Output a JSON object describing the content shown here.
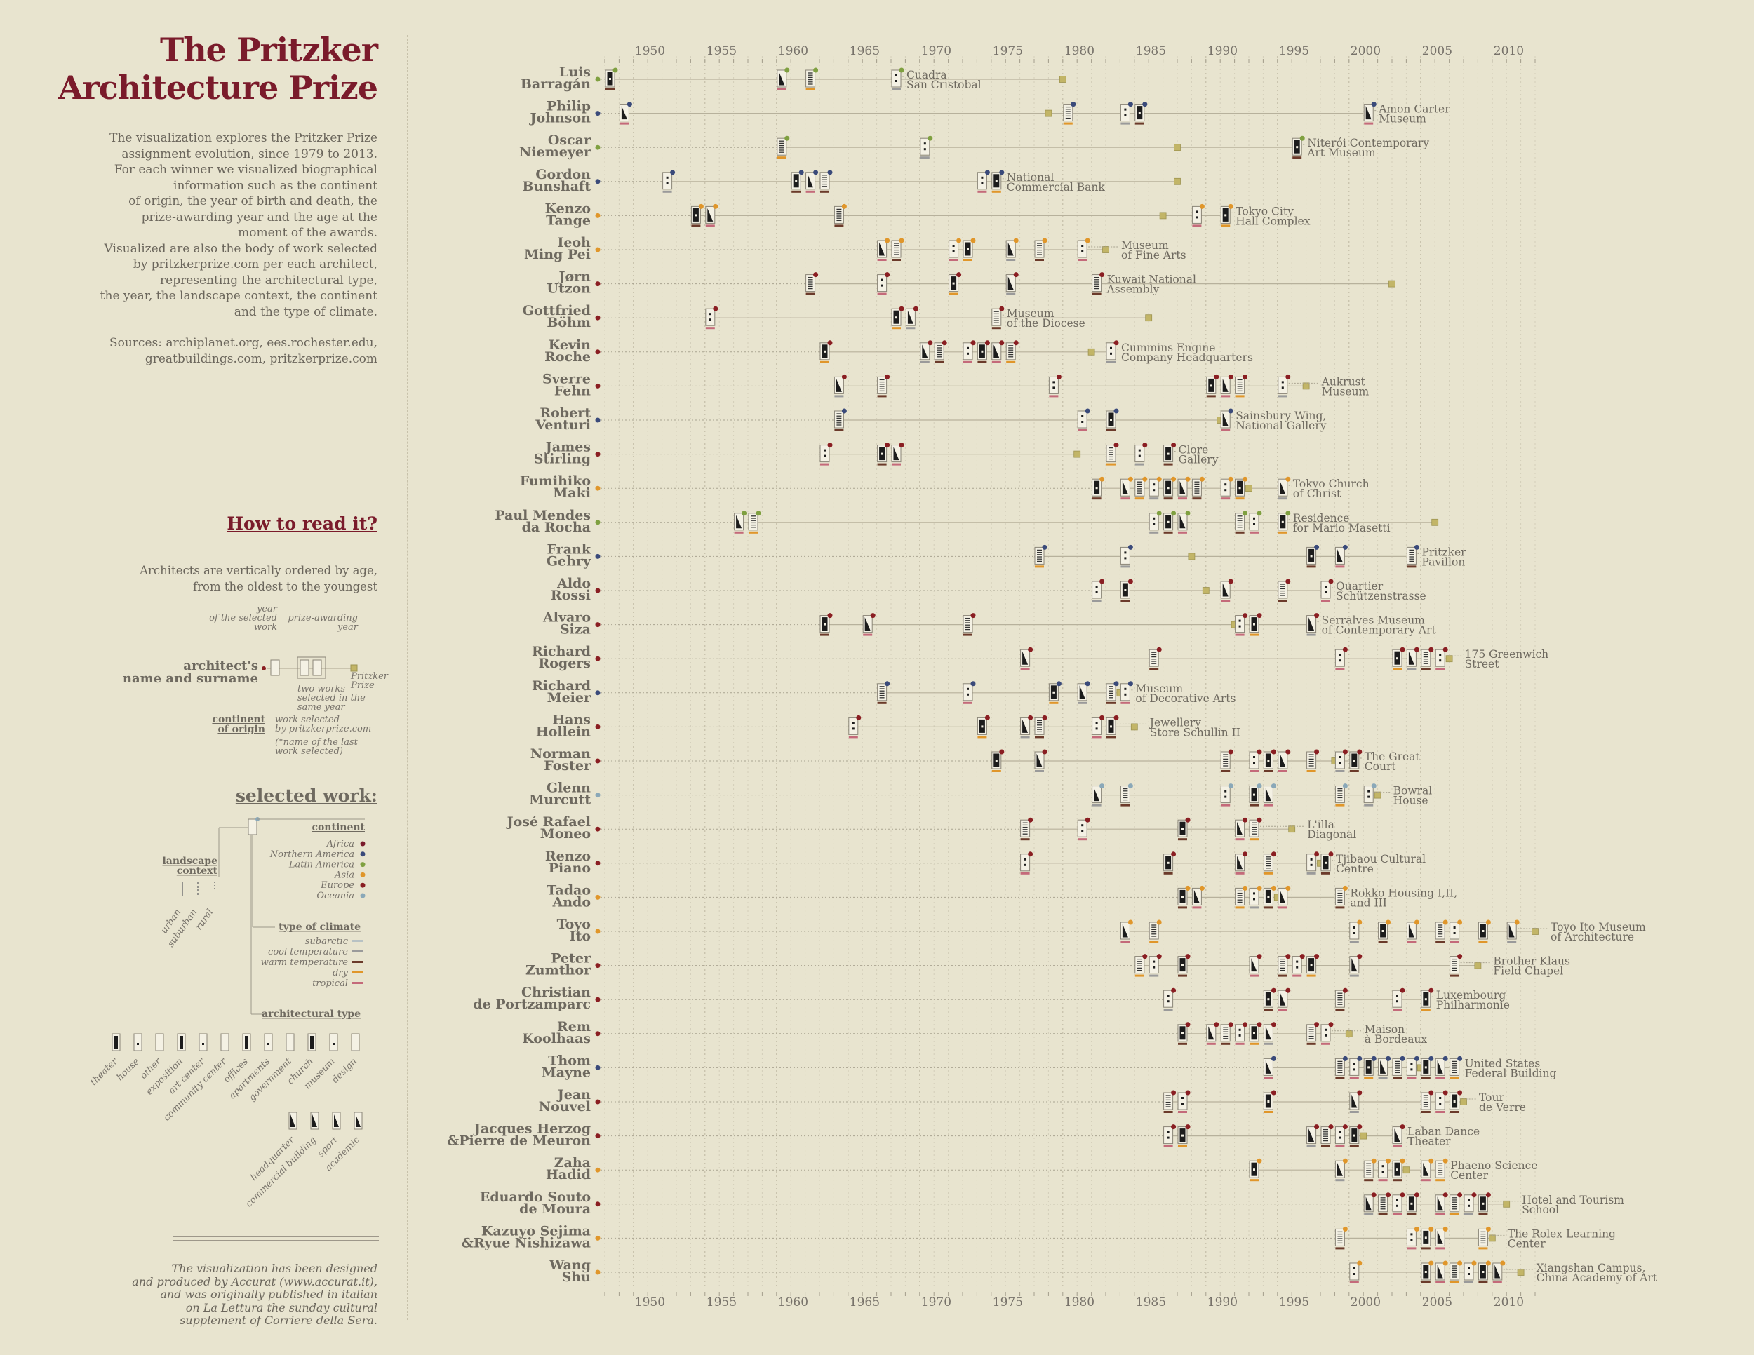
{
  "title": {
    "line1": "The Pritzker",
    "line2": "Architecture Prize"
  },
  "intro": [
    "The visualization explores the Pritzker Prize",
    "assignment evolution, since 1979 to 2013.",
    "For each winner we visualized biographical",
    "information such as the continent",
    "of origin, the year of birth and death, the",
    "prize-awarding year and the age at the",
    "moment of the awards.",
    "Visualized are also the body of work selected",
    "by pritzkerprize.com per each architect,",
    "representing the architectural type,",
    "the year, the landscape context, the continent",
    "and the type of climate."
  ],
  "sources": [
    "Sources: archiplanet.org, ees.rochester.edu,",
    "greatbuildings.com, pritzkerprize.com"
  ],
  "how_to_read": {
    "heading": "How to read it?",
    "text": [
      "Architects are vertically ordered by age,",
      "from the oldest to the youngest"
    ],
    "labels": {
      "year_selected": [
        "year",
        "of the selected",
        "work"
      ],
      "prize_awarding": [
        "prize-awarding",
        "year"
      ],
      "name": [
        "architect's",
        "name and surname"
      ],
      "continent": [
        "continent",
        "of origin"
      ],
      "two_works": [
        "two works",
        "selected in the",
        "same year"
      ],
      "work_selected": [
        "work selected",
        "by pritzkerprize.com"
      ],
      "last_work": [
        "(*name of the last",
        "work selected)"
      ],
      "prize": [
        "Pritzker",
        "Prize"
      ]
    }
  },
  "selected_work": {
    "heading": "selected work:",
    "continent_title": "continent",
    "continents": [
      {
        "label": "Africa",
        "color": "#7a1b2b"
      },
      {
        "label": "Northern America",
        "color": "#3a4a7a"
      },
      {
        "label": "Latin America",
        "color": "#7fa040"
      },
      {
        "label": "Asia",
        "color": "#e0962a"
      },
      {
        "label": "Europe",
        "color": "#8a1e22"
      },
      {
        "label": "Oceania",
        "color": "#8aa8b8"
      }
    ],
    "landscape_title": [
      "landscape",
      "context"
    ],
    "landscape": [
      "urban",
      "suburban",
      "rural"
    ],
    "climate_title": "type of climate",
    "climates": [
      {
        "label": "subarctic",
        "color": "#b8c2c4"
      },
      {
        "label": "cool temperature",
        "color": "#9a9a9a"
      },
      {
        "label": "warm temperature",
        "color": "#6b3a2a"
      },
      {
        "label": "dry",
        "color": "#e0962a"
      },
      {
        "label": "tropical",
        "color": "#c46a7a"
      }
    ],
    "type_title": "architectural type",
    "types_row1": [
      "theater",
      "house",
      "other",
      "exposition",
      "art center",
      "community center",
      "offices",
      "apartments",
      "government",
      "church",
      "museum",
      "design"
    ],
    "types_row2": [
      "headquarter",
      "commercial building",
      "sport",
      "academic"
    ]
  },
  "credits": [
    "The visualization has been designed",
    "and produced by Accurat (www.accurat.it),",
    "and was originally published in italian",
    "on La Lettura the sunday cultural",
    "supplement of Corriere della Sera."
  ],
  "chart_data": {
    "type": "timeline",
    "x_axis": {
      "min": 1948,
      "max": 2013,
      "ticks": [
        1950,
        1955,
        1960,
        1965,
        1970,
        1975,
        1980,
        1985,
        1990,
        1995,
        2000,
        2005,
        2010
      ]
    },
    "colors": {
      "Europe": "#8a1e22",
      "Northern America": "#3a4a7a",
      "Latin America": "#7fa040",
      "Asia": "#e0962a",
      "Oceania": "#8aa8b8"
    },
    "architects": [
      {
        "name": [
          "Luis",
          "Barragán"
        ],
        "continent": "Latin America",
        "prize": 1980,
        "start": 1948,
        "works": [
          1948,
          1960,
          1962,
          1968
        ],
        "last_work": [
          "Cuadra",
          "San Cristobal"
        ]
      },
      {
        "name": [
          "Philip",
          "Johnson"
        ],
        "continent": "Northern America",
        "prize": 1979,
        "start": 1949,
        "works": [
          1949,
          1980,
          1984,
          1985,
          2001
        ],
        "last_work": [
          "Amon Carter",
          "Museum"
        ]
      },
      {
        "name": [
          "Oscar",
          "Niemeyer"
        ],
        "continent": "Latin America",
        "prize": 1988,
        "start": 1960,
        "works": [
          1960,
          1970,
          1996
        ],
        "last_work": [
          "Niterói Contemporary",
          "Art Museum"
        ]
      },
      {
        "name": [
          "Gordon",
          "Bunshaft"
        ],
        "continent": "Northern America",
        "prize": 1988,
        "start": 1952,
        "works": [
          1952,
          1961,
          1962,
          1963,
          1974,
          1975
        ],
        "last_work": [
          "National",
          "Commercial Bank"
        ]
      },
      {
        "name": [
          "Kenzo",
          "Tange"
        ],
        "continent": "Asia",
        "prize": 1987,
        "start": 1954,
        "works": [
          1954,
          1955,
          1964,
          1989,
          1991
        ],
        "last_work": [
          "Tokyo City",
          "Hall Complex"
        ]
      },
      {
        "name": [
          "Ieoh",
          "Ming Pei"
        ],
        "continent": "Asia",
        "prize": 1983,
        "start": 1967,
        "works": [
          1967,
          1968,
          1972,
          1973,
          1976,
          1978,
          1981
        ],
        "last_work": [
          "Museum",
          "of Fine Arts"
        ]
      },
      {
        "name": [
          "Jørn",
          "Utzon"
        ],
        "continent": "Europe",
        "prize": 2003,
        "start": 1962,
        "works": [
          1962,
          1967,
          1972,
          1976,
          1982
        ],
        "last_work": [
          "Kuwait National",
          "Assembly"
        ]
      },
      {
        "name": [
          "Gottfried",
          "Böhm"
        ],
        "continent": "Europe",
        "prize": 1986,
        "start": 1955,
        "works": [
          1955,
          1968,
          1969,
          1975
        ],
        "last_work": [
          "Museum",
          "of the Diocese"
        ]
      },
      {
        "name": [
          "Kevin",
          "Roche"
        ],
        "continent": "Europe",
        "prize": 1982,
        "start": 1963,
        "works": [
          1963,
          1970,
          1971,
          1973,
          1974,
          1975,
          1976,
          1983
        ],
        "last_work": [
          "Cummins Engine",
          "Company Headquarters"
        ]
      },
      {
        "name": [
          "Sverre",
          "Fehn"
        ],
        "continent": "Europe",
        "prize": 1997,
        "start": 1964,
        "works": [
          1964,
          1967,
          1979,
          1990,
          1991,
          1992,
          1995
        ],
        "last_work": [
          "Aukrust",
          "Museum"
        ]
      },
      {
        "name": [
          "Robert",
          "Venturi"
        ],
        "continent": "Northern America",
        "prize": 1991,
        "start": 1964,
        "works": [
          1964,
          1981,
          1983,
          1991
        ],
        "last_work": [
          "Sainsbury Wing,",
          "National Gallery"
        ]
      },
      {
        "name": [
          "James",
          "Stirling"
        ],
        "continent": "Europe",
        "prize": 1981,
        "start": 1963,
        "works": [
          1963,
          1967,
          1968,
          1983,
          1985,
          1987
        ],
        "last_work": [
          "Clore",
          "Gallery"
        ]
      },
      {
        "name": [
          "Fumihiko",
          "Maki"
        ],
        "continent": "Asia",
        "prize": 1993,
        "start": 1982,
        "works": [
          1982,
          1984,
          1985,
          1986,
          1987,
          1988,
          1989,
          1991,
          1992,
          1995
        ],
        "last_work": [
          "Tokyo Church",
          "of Christ"
        ]
      },
      {
        "name": [
          "Paul Mendes",
          "da Rocha"
        ],
        "continent": "Latin America",
        "prize": 2006,
        "start": 1957,
        "works": [
          1957,
          1958,
          1986,
          1987,
          1988,
          1992,
          1993,
          1995
        ],
        "last_work": [
          "Residence",
          "for Mario Masetti"
        ]
      },
      {
        "name": [
          "Frank",
          "Gehry"
        ],
        "continent": "Northern America",
        "prize": 1989,
        "start": 1978,
        "works": [
          1978,
          1984,
          1997,
          1999,
          2004
        ],
        "last_work": [
          "Pritzker",
          "Pavillon"
        ]
      },
      {
        "name": [
          "Aldo",
          "Rossi"
        ],
        "continent": "Europe",
        "prize": 1990,
        "start": 1982,
        "works": [
          1982,
          1984,
          1991,
          1995,
          1998
        ],
        "last_work": [
          "Quartier",
          "Schützenstrasse"
        ]
      },
      {
        "name": [
          "Alvaro",
          "Siza"
        ],
        "continent": "Europe",
        "prize": 1992,
        "start": 1963,
        "works": [
          1963,
          1966,
          1973,
          1992,
          1993,
          1997
        ],
        "last_work": [
          "Serralves Museum",
          "of Contemporary Art"
        ]
      },
      {
        "name": [
          "Richard",
          "Rogers"
        ],
        "continent": "Europe",
        "prize": 2007,
        "start": 1977,
        "works": [
          1977,
          1986,
          1999,
          2003,
          2004,
          2005,
          2006
        ],
        "last_work": [
          "175 Greenwich",
          "Street"
        ]
      },
      {
        "name": [
          "Richard",
          "Meier"
        ],
        "continent": "Northern America",
        "prize": 1984,
        "start": 1967,
        "works": [
          1967,
          1973,
          1979,
          1981,
          1983,
          1984
        ],
        "last_work": [
          "Museum",
          "of Decorative Arts"
        ]
      },
      {
        "name": [
          "Hans",
          "Hollein"
        ],
        "continent": "Europe",
        "prize": 1985,
        "start": 1965,
        "works": [
          1965,
          1974,
          1977,
          1978,
          1982,
          1983
        ],
        "last_work": [
          "Jewellery",
          "Store Schullin II"
        ]
      },
      {
        "name": [
          "Norman",
          "Foster"
        ],
        "continent": "Europe",
        "prize": 1999,
        "start": 1975,
        "works": [
          1975,
          1978,
          1991,
          1993,
          1994,
          1995,
          1997,
          1999,
          2000
        ],
        "last_work": [
          "The Great",
          "Court"
        ]
      },
      {
        "name": [
          "Glenn",
          "Murcutt"
        ],
        "continent": "Oceania",
        "prize": 2002,
        "start": 1982,
        "works": [
          1982,
          1984,
          1991,
          1993,
          1994,
          1999,
          2001
        ],
        "last_work": [
          "Bowral",
          "House"
        ]
      },
      {
        "name": [
          "José Rafael",
          "Moneo"
        ],
        "continent": "Europe",
        "prize": 1996,
        "start": 1977,
        "works": [
          1977,
          1981,
          1988,
          1992,
          1993
        ],
        "last_work": [
          "L'illa",
          "Diagonal"
        ]
      },
      {
        "name": [
          "Renzo",
          "Piano"
        ],
        "continent": "Europe",
        "prize": 1998,
        "start": 1977,
        "works": [
          1977,
          1987,
          1992,
          1994,
          1997,
          1998
        ],
        "last_work": [
          "Tjibaou Cultural",
          "Centre"
        ]
      },
      {
        "name": [
          "Tadao",
          "Ando"
        ],
        "continent": "Asia",
        "prize": 1995,
        "start": 1988,
        "works": [
          1988,
          1989,
          1992,
          1993,
          1994,
          1995,
          1999
        ],
        "last_work": [
          "Rokko Housing I,II,",
          "and III"
        ]
      },
      {
        "name": [
          "Toyo",
          "Ito"
        ],
        "continent": "Asia",
        "prize": 2013,
        "start": 1984,
        "works": [
          1984,
          1986,
          2000,
          2002,
          2004,
          2006,
          2007,
          2009,
          2011
        ],
        "last_work": [
          "Toyo Ito Museum",
          "of Architecture"
        ]
      },
      {
        "name": [
          "Peter",
          "Zumthor"
        ],
        "continent": "Europe",
        "prize": 2009,
        "start": 1985,
        "works": [
          1985,
          1986,
          1988,
          1993,
          1995,
          1996,
          1997,
          2000,
          2007
        ],
        "last_work": [
          "Brother Klaus",
          "Field Chapel"
        ]
      },
      {
        "name": [
          "Christian",
          "de Portzamparc"
        ],
        "continent": "Europe",
        "prize": null,
        "start": 1987,
        "works": [
          1987,
          1994,
          1995,
          1999,
          2003,
          2005
        ],
        "last_work": [
          "Luxembourg",
          "Philharmonie"
        ]
      },
      {
        "name": [
          "Rem",
          "Koolhaas"
        ],
        "continent": "Europe",
        "prize": 2000,
        "start": 1988,
        "works": [
          1988,
          1990,
          1991,
          1992,
          1993,
          1994,
          1997,
          1998
        ],
        "last_work": [
          "Maison",
          "à Bordeaux"
        ]
      },
      {
        "name": [
          "Thom",
          "Mayne"
        ],
        "continent": "Northern America",
        "prize": 2005,
        "start": 1994,
        "works": [
          1994,
          1999,
          2000,
          2001,
          2002,
          2003,
          2004,
          2005,
          2006,
          2007
        ],
        "last_work": [
          "United States",
          "Federal Building"
        ]
      },
      {
        "name": [
          "Jean",
          "Nouvel"
        ],
        "continent": "Europe",
        "prize": 2008,
        "start": 1987,
        "works": [
          1987,
          1988,
          1994,
          2000,
          2005,
          2006,
          2007
        ],
        "last_work": [
          "Tour",
          "de Verre"
        ]
      },
      {
        "name": [
          "Jacques Herzog",
          "&Pierre de Meuron"
        ],
        "continent": "Europe",
        "prize": 2001,
        "start": 1987,
        "works": [
          1987,
          1988,
          1997,
          1998,
          1999,
          2000,
          2003
        ],
        "last_work": [
          "Laban Dance",
          "Theater"
        ]
      },
      {
        "name": [
          "Zaha",
          "Hadid"
        ],
        "continent": "Asia",
        "prize": 2004,
        "start": 1993,
        "works": [
          1993,
          1999,
          2001,
          2002,
          2003,
          2005,
          2006
        ],
        "last_work": [
          "Phaeno Science",
          "Center"
        ]
      },
      {
        "name": [
          "Eduardo Souto",
          "de Moura"
        ],
        "continent": "Europe",
        "prize": 2011,
        "start": 2001,
        "works": [
          2001,
          2002,
          2003,
          2004,
          2006,
          2007,
          2008,
          2009
        ],
        "last_work": [
          "Hotel and Tourism",
          "School"
        ]
      },
      {
        "name": [
          "Kazuyo Sejima",
          "&Ryue Nishizawa"
        ],
        "continent": "Asia",
        "prize": 2010,
        "start": 1999,
        "works": [
          1999,
          2004,
          2005,
          2006,
          2009
        ],
        "last_work": [
          "The Rolex Learning",
          "Center"
        ]
      },
      {
        "name": [
          "Wang",
          "Shu"
        ],
        "continent": "Asia",
        "prize": 2012,
        "start": 2000,
        "works": [
          2000,
          2005,
          2006,
          2007,
          2008,
          2009,
          2010
        ],
        "last_work": [
          "Xiangshan Campus,",
          "China Academy of Art"
        ]
      }
    ]
  }
}
